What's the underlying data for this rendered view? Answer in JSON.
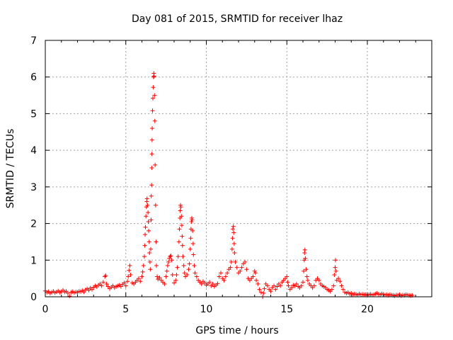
{
  "chart_data": {
    "type": "scatter",
    "title": "Day 081 of 2015, SRMTID for receiver lhaz",
    "xlabel": "GPS time / hours",
    "ylabel": "SRMTID / TECUs",
    "xlim": [
      0,
      24
    ],
    "ylim": [
      0,
      7
    ],
    "xticks": [
      0,
      5,
      10,
      15,
      20
    ],
    "yticks": [
      0,
      1,
      2,
      3,
      4,
      5,
      6,
      7
    ],
    "grid": true,
    "marker": "plus",
    "color": "#ff0000",
    "series": [
      {
        "name": "lhaz",
        "points": [
          [
            0.0,
            0.16
          ],
          [
            0.1,
            0.12
          ],
          [
            0.2,
            0.14
          ],
          [
            0.3,
            0.1
          ],
          [
            0.4,
            0.12
          ],
          [
            0.5,
            0.15
          ],
          [
            0.6,
            0.11
          ],
          [
            0.7,
            0.13
          ],
          [
            0.8,
            0.16
          ],
          [
            0.9,
            0.12
          ],
          [
            1.0,
            0.14
          ],
          [
            1.1,
            0.18
          ],
          [
            1.2,
            0.13
          ],
          [
            1.3,
            0.15
          ],
          [
            1.4,
            0.1
          ],
          [
            1.5,
            0.02
          ],
          [
            1.6,
            0.12
          ],
          [
            1.7,
            0.14
          ],
          [
            1.8,
            0.11
          ],
          [
            1.9,
            0.13
          ],
          [
            2.0,
            0.12
          ],
          [
            2.1,
            0.15
          ],
          [
            2.2,
            0.14
          ],
          [
            2.3,
            0.17
          ],
          [
            2.4,
            0.13
          ],
          [
            2.5,
            0.19
          ],
          [
            2.6,
            0.22
          ],
          [
            2.7,
            0.18
          ],
          [
            2.8,
            0.24
          ],
          [
            2.9,
            0.2
          ],
          [
            3.0,
            0.26
          ],
          [
            3.1,
            0.3
          ],
          [
            3.2,
            0.27
          ],
          [
            3.3,
            0.32
          ],
          [
            3.4,
            0.35
          ],
          [
            3.5,
            0.3
          ],
          [
            3.6,
            0.4
          ],
          [
            3.7,
            0.55
          ],
          [
            3.75,
            0.58
          ],
          [
            3.8,
            0.35
          ],
          [
            3.9,
            0.28
          ],
          [
            4.0,
            0.22
          ],
          [
            4.1,
            0.26
          ],
          [
            4.2,
            0.3
          ],
          [
            4.3,
            0.25
          ],
          [
            4.4,
            0.28
          ],
          [
            4.5,
            0.3
          ],
          [
            4.6,
            0.32
          ],
          [
            4.7,
            0.28
          ],
          [
            4.8,
            0.34
          ],
          [
            4.9,
            0.38
          ],
          [
            5.0,
            0.3
          ],
          [
            5.1,
            0.42
          ],
          [
            5.15,
            0.55
          ],
          [
            5.2,
            0.72
          ],
          [
            5.25,
            0.85
          ],
          [
            5.3,
            0.6
          ],
          [
            5.4,
            0.38
          ],
          [
            5.5,
            0.35
          ],
          [
            5.6,
            0.4
          ],
          [
            5.7,
            0.45
          ],
          [
            5.8,
            0.5
          ],
          [
            5.9,
            0.42
          ],
          [
            6.0,
            0.55
          ],
          [
            6.05,
            0.68
          ],
          [
            6.1,
            0.85
          ],
          [
            6.15,
            1.1
          ],
          [
            6.18,
            1.4
          ],
          [
            6.2,
            1.7
          ],
          [
            6.22,
            1.9
          ],
          [
            6.25,
            2.2
          ],
          [
            6.28,
            2.45
          ],
          [
            6.3,
            2.6
          ],
          [
            6.32,
            2.68
          ],
          [
            6.35,
            2.5
          ],
          [
            6.38,
            2.3
          ],
          [
            6.4,
            2.05
          ],
          [
            6.42,
            1.8
          ],
          [
            6.45,
            1.5
          ],
          [
            6.47,
            1.2
          ],
          [
            6.5,
            0.95
          ],
          [
            6.52,
            0.75
          ],
          [
            6.55,
            1.3
          ],
          [
            6.57,
            2.1
          ],
          [
            6.58,
            2.75
          ],
          [
            6.6,
            3.05
          ],
          [
            6.61,
            3.52
          ],
          [
            6.62,
            3.9
          ],
          [
            6.63,
            4.28
          ],
          [
            6.64,
            4.6
          ],
          [
            6.66,
            5.08
          ],
          [
            6.68,
            5.42
          ],
          [
            6.7,
            5.72
          ],
          [
            6.72,
            6.0
          ],
          [
            6.74,
            6.1
          ],
          [
            6.76,
            6.02
          ],
          [
            6.78,
            5.5
          ],
          [
            6.8,
            4.8
          ],
          [
            6.82,
            3.6
          ],
          [
            6.85,
            2.5
          ],
          [
            6.88,
            1.5
          ],
          [
            6.9,
            0.85
          ],
          [
            6.95,
            0.55
          ],
          [
            7.0,
            0.48
          ],
          [
            7.1,
            0.52
          ],
          [
            7.2,
            0.45
          ],
          [
            7.3,
            0.4
          ],
          [
            7.4,
            0.35
          ],
          [
            7.5,
            0.55
          ],
          [
            7.55,
            0.7
          ],
          [
            7.6,
            0.85
          ],
          [
            7.65,
            0.95
          ],
          [
            7.7,
            1.05
          ],
          [
            7.75,
            1.1
          ],
          [
            7.8,
            1.12
          ],
          [
            7.85,
            1.0
          ],
          [
            7.9,
            0.6
          ],
          [
            8.0,
            0.38
          ],
          [
            8.1,
            0.45
          ],
          [
            8.15,
            0.6
          ],
          [
            8.2,
            0.8
          ],
          [
            8.25,
            1.1
          ],
          [
            8.3,
            1.5
          ],
          [
            8.33,
            1.85
          ],
          [
            8.36,
            2.15
          ],
          [
            8.38,
            2.35
          ],
          [
            8.4,
            2.5
          ],
          [
            8.42,
            2.45
          ],
          [
            8.45,
            2.2
          ],
          [
            8.48,
            1.95
          ],
          [
            8.5,
            1.65
          ],
          [
            8.52,
            1.4
          ],
          [
            8.55,
            1.1
          ],
          [
            8.6,
            0.85
          ],
          [
            8.65,
            0.65
          ],
          [
            8.7,
            0.55
          ],
          [
            8.8,
            0.6
          ],
          [
            8.9,
            0.75
          ],
          [
            8.95,
            0.9
          ],
          [
            9.0,
            1.3
          ],
          [
            9.03,
            1.6
          ],
          [
            9.05,
            1.85
          ],
          [
            9.08,
            2.05
          ],
          [
            9.1,
            2.15
          ],
          [
            9.12,
            2.1
          ],
          [
            9.15,
            1.8
          ],
          [
            9.18,
            1.45
          ],
          [
            9.2,
            1.15
          ],
          [
            9.25,
            0.85
          ],
          [
            9.3,
            0.65
          ],
          [
            9.4,
            0.55
          ],
          [
            9.5,
            0.45
          ],
          [
            9.6,
            0.4
          ],
          [
            9.7,
            0.35
          ],
          [
            9.8,
            0.42
          ],
          [
            9.9,
            0.38
          ],
          [
            10.0,
            0.32
          ],
          [
            10.1,
            0.35
          ],
          [
            10.2,
            0.4
          ],
          [
            10.3,
            0.3
          ],
          [
            10.4,
            0.35
          ],
          [
            10.5,
            0.28
          ],
          [
            10.6,
            0.32
          ],
          [
            10.7,
            0.36
          ],
          [
            10.8,
            0.55
          ],
          [
            10.9,
            0.65
          ],
          [
            11.0,
            0.5
          ],
          [
            11.1,
            0.45
          ],
          [
            11.2,
            0.55
          ],
          [
            11.3,
            0.65
          ],
          [
            11.4,
            0.75
          ],
          [
            11.5,
            0.8
          ],
          [
            11.55,
            0.95
          ],
          [
            11.6,
            1.3
          ],
          [
            11.63,
            1.6
          ],
          [
            11.65,
            1.85
          ],
          [
            11.68,
            1.92
          ],
          [
            11.7,
            1.75
          ],
          [
            11.73,
            1.45
          ],
          [
            11.75,
            1.2
          ],
          [
            11.8,
            0.95
          ],
          [
            11.9,
            0.8
          ],
          [
            12.0,
            0.65
          ],
          [
            12.1,
            0.7
          ],
          [
            12.2,
            0.8
          ],
          [
            12.3,
            0.9
          ],
          [
            12.4,
            0.95
          ],
          [
            12.5,
            0.75
          ],
          [
            12.6,
            0.5
          ],
          [
            12.7,
            0.45
          ],
          [
            12.8,
            0.5
          ],
          [
            12.9,
            0.55
          ],
          [
            13.0,
            0.7
          ],
          [
            13.05,
            0.65
          ],
          [
            13.1,
            0.45
          ],
          [
            13.2,
            0.35
          ],
          [
            13.3,
            0.2
          ],
          [
            13.4,
            0.12
          ],
          [
            13.5,
            0.0
          ],
          [
            13.55,
            0.1
          ],
          [
            13.6,
            0.22
          ],
          [
            13.7,
            0.35
          ],
          [
            13.8,
            0.3
          ],
          [
            13.9,
            0.2
          ],
          [
            14.0,
            0.15
          ],
          [
            14.1,
            0.25
          ],
          [
            14.2,
            0.3
          ],
          [
            14.3,
            0.2
          ],
          [
            14.4,
            0.28
          ],
          [
            14.5,
            0.35
          ],
          [
            14.6,
            0.3
          ],
          [
            14.7,
            0.4
          ],
          [
            14.8,
            0.45
          ],
          [
            14.9,
            0.5
          ],
          [
            15.0,
            0.55
          ],
          [
            15.05,
            0.4
          ],
          [
            15.1,
            0.3
          ],
          [
            15.2,
            0.2
          ],
          [
            15.3,
            0.25
          ],
          [
            15.4,
            0.32
          ],
          [
            15.5,
            0.3
          ],
          [
            15.6,
            0.35
          ],
          [
            15.7,
            0.28
          ],
          [
            15.8,
            0.25
          ],
          [
            15.9,
            0.3
          ],
          [
            16.0,
            0.4
          ],
          [
            16.05,
            0.7
          ],
          [
            16.08,
            1.0
          ],
          [
            16.1,
            1.2
          ],
          [
            16.12,
            1.28
          ],
          [
            16.15,
            1.05
          ],
          [
            16.2,
            0.75
          ],
          [
            16.25,
            0.55
          ],
          [
            16.3,
            0.45
          ],
          [
            16.4,
            0.35
          ],
          [
            16.5,
            0.3
          ],
          [
            16.6,
            0.25
          ],
          [
            16.7,
            0.3
          ],
          [
            16.8,
            0.45
          ],
          [
            16.9,
            0.5
          ],
          [
            17.0,
            0.45
          ],
          [
            17.1,
            0.35
          ],
          [
            17.2,
            0.3
          ],
          [
            17.3,
            0.28
          ],
          [
            17.4,
            0.25
          ],
          [
            17.5,
            0.2
          ],
          [
            17.6,
            0.18
          ],
          [
            17.7,
            0.15
          ],
          [
            17.8,
            0.2
          ],
          [
            17.9,
            0.3
          ],
          [
            17.95,
            0.6
          ],
          [
            18.0,
            0.8
          ],
          [
            18.02,
            1.0
          ],
          [
            18.05,
            0.7
          ],
          [
            18.1,
            0.45
          ],
          [
            18.2,
            0.5
          ],
          [
            18.3,
            0.42
          ],
          [
            18.4,
            0.3
          ],
          [
            18.5,
            0.2
          ],
          [
            18.6,
            0.12
          ],
          [
            18.7,
            0.1
          ],
          [
            18.8,
            0.12
          ],
          [
            18.9,
            0.08
          ],
          [
            19.0,
            0.1
          ],
          [
            19.1,
            0.06
          ],
          [
            19.2,
            0.08
          ],
          [
            19.3,
            0.07
          ],
          [
            19.4,
            0.05
          ],
          [
            19.5,
            0.08
          ],
          [
            19.6,
            0.06
          ],
          [
            19.7,
            0.07
          ],
          [
            19.8,
            0.05
          ],
          [
            19.9,
            0.06
          ],
          [
            20.0,
            0.04
          ],
          [
            20.1,
            0.06
          ],
          [
            20.2,
            0.07
          ],
          [
            20.3,
            0.05
          ],
          [
            20.4,
            0.06
          ],
          [
            20.5,
            0.08
          ],
          [
            20.6,
            0.1
          ],
          [
            20.7,
            0.07
          ],
          [
            20.8,
            0.06
          ],
          [
            20.9,
            0.08
          ],
          [
            21.0,
            0.07
          ],
          [
            21.1,
            0.05
          ],
          [
            21.2,
            0.06
          ],
          [
            21.3,
            0.04
          ],
          [
            21.4,
            0.06
          ],
          [
            21.5,
            0.05
          ],
          [
            21.6,
            0.04
          ],
          [
            21.7,
            0.03
          ],
          [
            21.8,
            0.05
          ],
          [
            21.9,
            0.04
          ],
          [
            22.0,
            0.06
          ],
          [
            22.1,
            0.03
          ],
          [
            22.2,
            0.05
          ],
          [
            22.3,
            0.04
          ],
          [
            22.4,
            0.06
          ],
          [
            22.5,
            0.05
          ],
          [
            22.6,
            0.04
          ],
          [
            22.7,
            0.03
          ],
          [
            22.8,
            0.04
          ]
        ]
      }
    ]
  }
}
